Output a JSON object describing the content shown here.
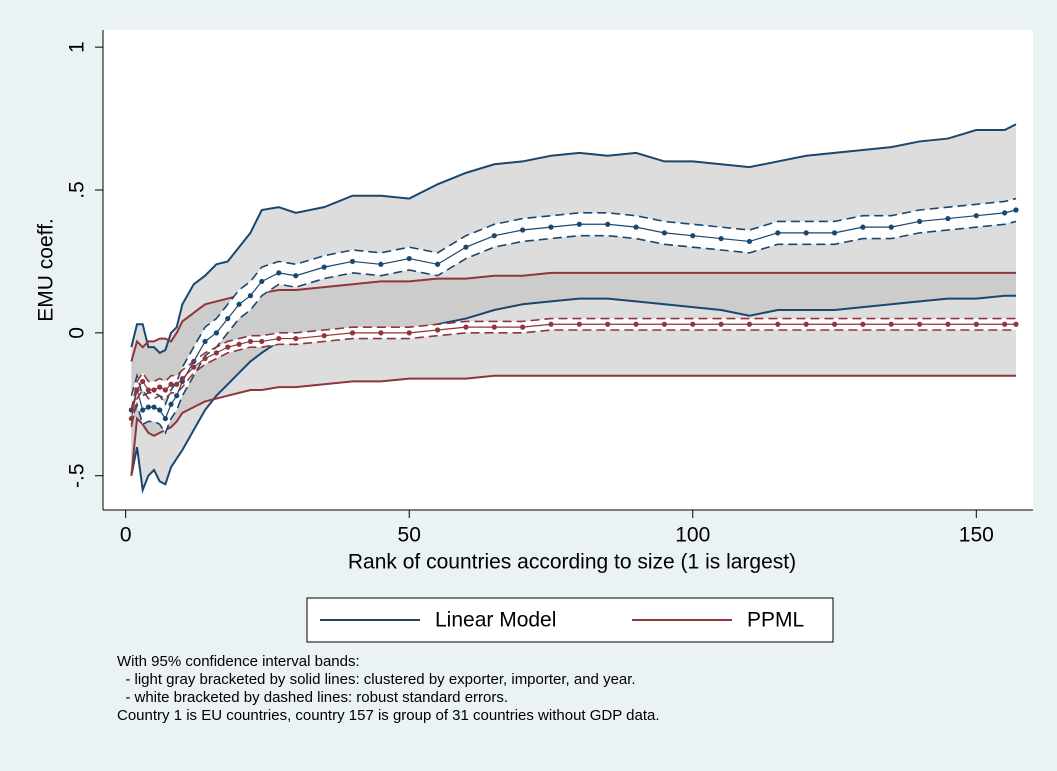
{
  "chart_data": {
    "type": "line",
    "xlabel": "Rank of countries according to size (1 is largest)",
    "ylabel": "EMU coeff.",
    "x": [
      1,
      2,
      3,
      4,
      5,
      6,
      7,
      8,
      9,
      10,
      12,
      14,
      16,
      18,
      20,
      22,
      24,
      27,
      30,
      35,
      40,
      45,
      50,
      55,
      60,
      65,
      70,
      75,
      80,
      85,
      90,
      95,
      100,
      105,
      110,
      115,
      120,
      125,
      130,
      135,
      140,
      145,
      150,
      155,
      157
    ],
    "xlim": [
      -4,
      160
    ],
    "xticks": [
      0,
      50,
      100,
      150
    ],
    "ylim": [
      -0.62,
      1.06
    ],
    "yticks": [
      {
        "value": -0.5,
        "label": "-.5"
      },
      0,
      {
        "value": 0.5,
        "label": ".5"
      },
      1
    ],
    "band_color": "#bbbbbb",
    "series": [
      {
        "name": "Linear Model",
        "color": "#1a476f",
        "values": [
          -0.27,
          -0.2,
          -0.27,
          -0.26,
          -0.26,
          -0.27,
          -0.3,
          -0.25,
          -0.22,
          -0.17,
          -0.1,
          -0.03,
          0.0,
          0.05,
          0.1,
          0.13,
          0.18,
          0.21,
          0.2,
          0.23,
          0.25,
          0.24,
          0.26,
          0.24,
          0.3,
          0.34,
          0.36,
          0.37,
          0.38,
          0.38,
          0.37,
          0.35,
          0.34,
          0.33,
          0.32,
          0.35,
          0.35,
          0.35,
          0.37,
          0.37,
          0.39,
          0.4,
          0.41,
          0.42,
          0.43
        ],
        "robust_low": [
          -0.32,
          -0.25,
          -0.32,
          -0.31,
          -0.31,
          -0.32,
          -0.35,
          -0.3,
          -0.27,
          -0.22,
          -0.15,
          -0.08,
          -0.05,
          0.0,
          0.05,
          0.08,
          0.13,
          0.17,
          0.16,
          0.19,
          0.21,
          0.2,
          0.22,
          0.2,
          0.26,
          0.3,
          0.32,
          0.33,
          0.34,
          0.34,
          0.33,
          0.31,
          0.3,
          0.29,
          0.28,
          0.31,
          0.31,
          0.31,
          0.33,
          0.33,
          0.35,
          0.36,
          0.37,
          0.38,
          0.39
        ],
        "robust_high": [
          -0.22,
          -0.15,
          -0.22,
          -0.21,
          -0.21,
          -0.22,
          -0.25,
          -0.2,
          -0.17,
          -0.12,
          -0.05,
          0.02,
          0.05,
          0.1,
          0.15,
          0.18,
          0.23,
          0.25,
          0.24,
          0.27,
          0.29,
          0.28,
          0.3,
          0.28,
          0.34,
          0.38,
          0.4,
          0.41,
          0.42,
          0.42,
          0.41,
          0.39,
          0.38,
          0.37,
          0.36,
          0.39,
          0.39,
          0.39,
          0.41,
          0.41,
          0.43,
          0.44,
          0.45,
          0.46,
          0.47
        ],
        "cluster_low": [
          -0.5,
          -0.4,
          -0.55,
          -0.5,
          -0.48,
          -0.52,
          -0.53,
          -0.47,
          -0.44,
          -0.41,
          -0.34,
          -0.27,
          -0.22,
          -0.18,
          -0.14,
          -0.1,
          -0.07,
          -0.03,
          -0.04,
          0.0,
          0.01,
          0.0,
          0.01,
          0.03,
          0.05,
          0.08,
          0.1,
          0.11,
          0.12,
          0.12,
          0.11,
          0.1,
          0.09,
          0.08,
          0.06,
          0.08,
          0.08,
          0.08,
          0.09,
          0.1,
          0.11,
          0.12,
          0.12,
          0.13,
          0.13
        ],
        "cluster_high": [
          -0.05,
          0.03,
          0.03,
          -0.05,
          -0.05,
          -0.07,
          -0.06,
          0.0,
          0.02,
          0.1,
          0.17,
          0.2,
          0.24,
          0.25,
          0.3,
          0.35,
          0.43,
          0.44,
          0.42,
          0.44,
          0.48,
          0.48,
          0.47,
          0.52,
          0.56,
          0.59,
          0.6,
          0.62,
          0.63,
          0.62,
          0.63,
          0.6,
          0.6,
          0.59,
          0.58,
          0.6,
          0.62,
          0.63,
          0.64,
          0.65,
          0.67,
          0.68,
          0.71,
          0.71,
          0.73
        ]
      },
      {
        "name": "PPML",
        "color": "#90353b",
        "values": [
          -0.3,
          -0.2,
          -0.17,
          -0.2,
          -0.2,
          -0.19,
          -0.2,
          -0.18,
          -0.18,
          -0.16,
          -0.12,
          -0.09,
          -0.07,
          -0.05,
          -0.04,
          -0.03,
          -0.03,
          -0.02,
          -0.02,
          -0.01,
          0.0,
          0.0,
          0.0,
          0.01,
          0.02,
          0.02,
          0.02,
          0.03,
          0.03,
          0.03,
          0.03,
          0.03,
          0.03,
          0.03,
          0.03,
          0.03,
          0.03,
          0.03,
          0.03,
          0.03,
          0.03,
          0.03,
          0.03,
          0.03,
          0.03
        ],
        "robust_low": [
          -0.33,
          -0.23,
          -0.2,
          -0.23,
          -0.23,
          -0.22,
          -0.23,
          -0.21,
          -0.21,
          -0.19,
          -0.14,
          -0.11,
          -0.09,
          -0.07,
          -0.06,
          -0.05,
          -0.05,
          -0.04,
          -0.04,
          -0.03,
          -0.02,
          -0.02,
          -0.02,
          -0.01,
          0.0,
          0.0,
          0.0,
          0.01,
          0.01,
          0.01,
          0.01,
          0.01,
          0.01,
          0.01,
          0.01,
          0.01,
          0.01,
          0.01,
          0.01,
          0.01,
          0.01,
          0.01,
          0.01,
          0.01,
          0.01
        ],
        "robust_high": [
          -0.27,
          -0.17,
          -0.14,
          -0.17,
          -0.17,
          -0.16,
          -0.17,
          -0.15,
          -0.15,
          -0.13,
          -0.1,
          -0.07,
          -0.05,
          -0.03,
          -0.02,
          -0.01,
          -0.01,
          0.0,
          0.0,
          0.01,
          0.02,
          0.02,
          0.02,
          0.03,
          0.04,
          0.04,
          0.04,
          0.05,
          0.05,
          0.05,
          0.05,
          0.05,
          0.05,
          0.05,
          0.05,
          0.05,
          0.05,
          0.05,
          0.05,
          0.05,
          0.05,
          0.05,
          0.05,
          0.05,
          0.05
        ],
        "cluster_low": [
          -0.5,
          -0.3,
          -0.32,
          -0.35,
          -0.36,
          -0.35,
          -0.34,
          -0.33,
          -0.31,
          -0.28,
          -0.26,
          -0.24,
          -0.23,
          -0.22,
          -0.21,
          -0.2,
          -0.2,
          -0.19,
          -0.19,
          -0.18,
          -0.17,
          -0.17,
          -0.16,
          -0.16,
          -0.16,
          -0.15,
          -0.15,
          -0.15,
          -0.15,
          -0.15,
          -0.15,
          -0.15,
          -0.15,
          -0.15,
          -0.15,
          -0.15,
          -0.15,
          -0.15,
          -0.15,
          -0.15,
          -0.15,
          -0.15,
          -0.15,
          -0.15,
          -0.15
        ],
        "cluster_high": [
          -0.1,
          -0.03,
          -0.05,
          -0.03,
          -0.03,
          -0.02,
          -0.02,
          -0.03,
          0.0,
          0.04,
          0.07,
          0.1,
          0.11,
          0.12,
          0.13,
          0.14,
          0.14,
          0.15,
          0.15,
          0.16,
          0.17,
          0.18,
          0.18,
          0.19,
          0.19,
          0.2,
          0.2,
          0.21,
          0.21,
          0.21,
          0.21,
          0.21,
          0.21,
          0.21,
          0.21,
          0.21,
          0.21,
          0.21,
          0.21,
          0.21,
          0.21,
          0.21,
          0.21,
          0.21,
          0.21
        ]
      }
    ],
    "note": [
      "With 95% confidence interval bands:",
      "  - light gray bracketed by solid lines: clustered by exporter, importer, and year.",
      "  - white bracketed by dashed lines: robust standard errors.",
      "Country 1 is EU countries, country 157 is group of 31 countries without GDP data."
    ]
  }
}
